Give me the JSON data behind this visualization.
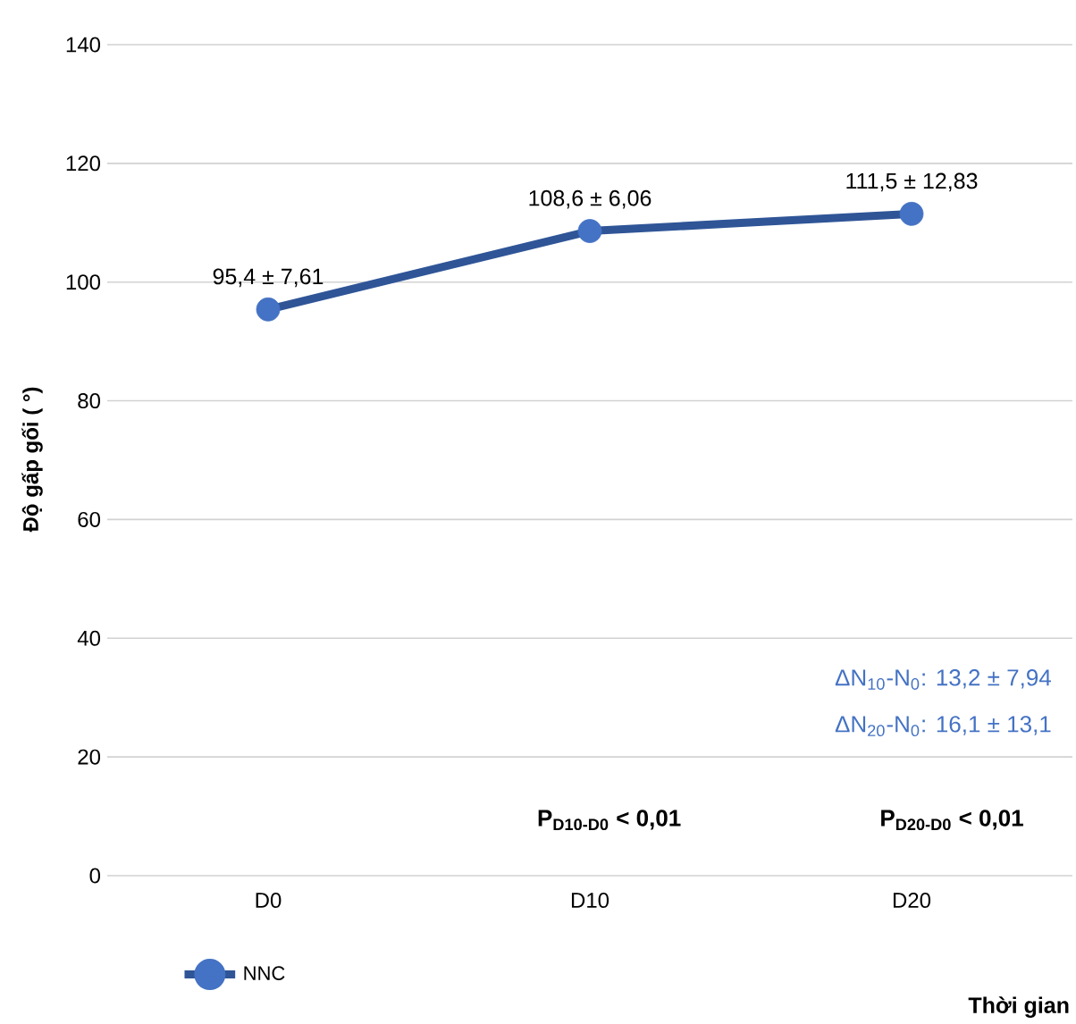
{
  "chart_data": {
    "type": "line",
    "xlabel": "Thời gian",
    "ylabel": "Độ gấp gối ( °)",
    "categories": [
      "D0",
      "D10",
      "D20"
    ],
    "series": [
      {
        "name": "NNC",
        "color": "#2f5597",
        "colors": [
          "#4472c4",
          "#4472c4",
          "#4472c4"
        ],
        "values": [
          95.4,
          108.6,
          111.5
        ],
        "value_labels": [
          "95,4 ± 7,61",
          "108,6 ± 6,06",
          "111,5 ± 12,83"
        ]
      }
    ],
    "ylim": [
      0,
      140
    ],
    "yticks": [
      0,
      20,
      40,
      60,
      80,
      100,
      120,
      140
    ],
    "grid": "y",
    "legend": "bottom left",
    "marker": "circle",
    "line_style": "solid",
    "annotations": [
      "ΔN$_{10}$-N$_{0}$: 13,2 ±  7,94",
      "ΔN$_{20}$-N$_{0}$: 16,1 ±  13,1",
      "P$_{D10-D0}$ < 0,01",
      "P$_{D20-D0}$ < 0,01"
    ]
  }
}
